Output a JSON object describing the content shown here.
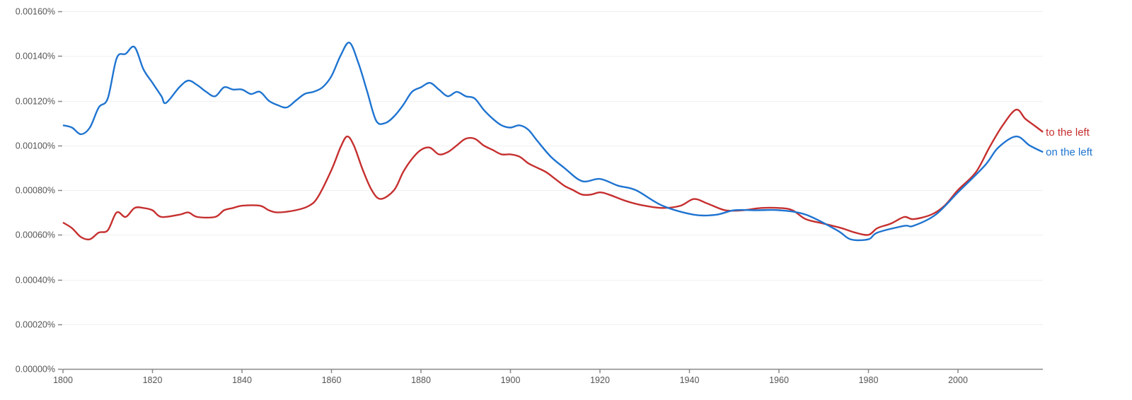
{
  "chart_data": {
    "type": "line",
    "title": "",
    "xlabel": "",
    "ylabel": "",
    "xlim": [
      1800,
      2019
    ],
    "ylim": [
      0,
      0.0016
    ],
    "y_unit": "%",
    "grid": true,
    "legend": "right-end labels",
    "x_ticks": [
      "1800",
      "1820",
      "1840",
      "1860",
      "1880",
      "1900",
      "1920",
      "1940",
      "1960",
      "1980",
      "2000"
    ],
    "y_ticks": [
      "0.00000%",
      "0.00020%",
      "0.00040%",
      "0.00060%",
      "0.00080%",
      "0.00100%",
      "0.00120%",
      "0.00140%",
      "0.00160%"
    ],
    "series": [
      {
        "name": "to the left",
        "color": "#c62f2f",
        "x": [
          1800,
          1802,
          1804,
          1806,
          1808,
          1810,
          1812,
          1814,
          1816,
          1818,
          1820,
          1822,
          1826,
          1828,
          1830,
          1834,
          1836,
          1838,
          1840,
          1844,
          1846,
          1848,
          1852,
          1855,
          1857,
          1860,
          1862,
          1863.5,
          1865,
          1867,
          1869,
          1871,
          1874,
          1876,
          1878,
          1880,
          1882,
          1884,
          1886,
          1888,
          1890,
          1892,
          1894,
          1896,
          1898,
          1900,
          1902,
          1904,
          1906,
          1908,
          1910,
          1912,
          1914,
          1916,
          1918,
          1920,
          1922,
          1926,
          1930,
          1934,
          1938,
          1941,
          1944,
          1948,
          1952,
          1956,
          1960,
          1963,
          1966,
          1970,
          1974,
          1977,
          1980,
          1982,
          1985,
          1988,
          1990,
          1994,
          1997,
          2000,
          2004,
          2007,
          2010,
          2013,
          2015,
          2017,
          2019
        ],
        "y": [
          0.000655,
          0.00063,
          0.00059,
          0.00058,
          0.00061,
          0.00062,
          0.0007,
          0.00068,
          0.00072,
          0.00072,
          0.00071,
          0.00068,
          0.00069,
          0.0007,
          0.00068,
          0.00068,
          0.00071,
          0.00072,
          0.00073,
          0.00073,
          0.00071,
          0.0007,
          0.00071,
          0.00073,
          0.00077,
          0.00089,
          0.00099,
          0.00104,
          0.001,
          0.00089,
          0.0008,
          0.00076,
          0.0008,
          0.00088,
          0.00094,
          0.00098,
          0.00099,
          0.00096,
          0.00097,
          0.001,
          0.00103,
          0.00103,
          0.001,
          0.00098,
          0.00096,
          0.00096,
          0.00095,
          0.00092,
          0.0009,
          0.00088,
          0.00085,
          0.00082,
          0.0008,
          0.00078,
          0.00078,
          0.00079,
          0.00078,
          0.00075,
          0.00073,
          0.00072,
          0.00073,
          0.00076,
          0.00074,
          0.00071,
          0.00071,
          0.00072,
          0.00072,
          0.00071,
          0.00067,
          0.00065,
          0.00063,
          0.00061,
          0.0006,
          0.00063,
          0.00065,
          0.00068,
          0.00067,
          0.00069,
          0.00073,
          0.0008,
          0.00088,
          0.00099,
          0.00109,
          0.00116,
          0.00112,
          0.00109,
          0.00106
        ]
      },
      {
        "name": "on the left",
        "color": "#1f74d0",
        "x": [
          1800,
          1802,
          1804,
          1806,
          1808,
          1810,
          1812,
          1814,
          1816,
          1818,
          1820,
          1822,
          1823,
          1826,
          1828,
          1830,
          1832,
          1834,
          1836,
          1838,
          1840,
          1842,
          1844,
          1846,
          1848,
          1850,
          1852,
          1854,
          1856,
          1858,
          1860,
          1862,
          1864,
          1866,
          1868,
          1870,
          1872,
          1874,
          1876,
          1878,
          1880,
          1882,
          1884,
          1886,
          1888,
          1890,
          1892,
          1894,
          1896,
          1898,
          1900,
          1902,
          1904,
          1906,
          1909,
          1912,
          1916,
          1920,
          1924,
          1928,
          1934,
          1941,
          1946,
          1950,
          1955,
          1960,
          1966,
          1973,
          1976,
          1980,
          1982,
          1988,
          1990,
          1995,
          2000,
          2006,
          2009,
          2013,
          2016,
          2019
        ],
        "y": [
          0.00109,
          0.00108,
          0.00105,
          0.00108,
          0.00117,
          0.00121,
          0.00139,
          0.00141,
          0.00144,
          0.00134,
          0.00128,
          0.00122,
          0.00119,
          0.00126,
          0.00129,
          0.00127,
          0.00124,
          0.00122,
          0.00126,
          0.00125,
          0.00125,
          0.00123,
          0.00124,
          0.0012,
          0.00118,
          0.00117,
          0.0012,
          0.00123,
          0.00124,
          0.00126,
          0.00131,
          0.0014,
          0.00146,
          0.00137,
          0.00124,
          0.00111,
          0.0011,
          0.00113,
          0.00118,
          0.00124,
          0.00126,
          0.00128,
          0.00125,
          0.00122,
          0.00124,
          0.00122,
          0.00121,
          0.00116,
          0.00112,
          0.00109,
          0.00108,
          0.00109,
          0.00107,
          0.00102,
          0.00095,
          0.0009,
          0.00084,
          0.00085,
          0.00082,
          0.0008,
          0.00073,
          0.00069,
          0.00069,
          0.00071,
          0.00071,
          0.00071,
          0.00069,
          0.00062,
          0.00058,
          0.00058,
          0.00061,
          0.00064,
          0.00064,
          0.00069,
          0.00079,
          0.00091,
          0.00099,
          0.00104,
          0.001,
          0.00097
        ]
      }
    ]
  }
}
